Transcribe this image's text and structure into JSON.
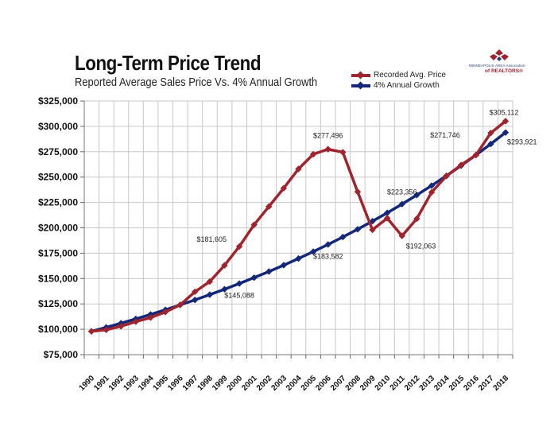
{
  "header": {
    "title": "Long-Term Price Trend",
    "subtitle": "Reported Average Sales Price Vs. 4% Annual Growth"
  },
  "logo": {
    "line1": "MINNEAPOLIS AREA Association",
    "line2": "of REALTORS®",
    "colors": {
      "red": "#a0242e",
      "blue": "#2a3d7a"
    }
  },
  "legend": {
    "items": [
      {
        "label": "Recorded Avg. Price",
        "color": "#a0242e"
      },
      {
        "label": "4% Annual Growth",
        "color": "#14287a"
      }
    ],
    "placement": "top-right"
  },
  "chart_data": {
    "type": "line",
    "title": "Long-Term Price Trend",
    "subtitle": "Reported Average Sales Price Vs. 4% Annual Growth",
    "xlabel": "",
    "ylabel": "",
    "ylim": [
      75000,
      325000
    ],
    "yticks": [
      75000,
      100000,
      125000,
      150000,
      175000,
      200000,
      225000,
      250000,
      275000,
      300000,
      325000
    ],
    "ytick_labels": [
      "$75,000",
      "$100,000",
      "$125,000",
      "$150,000",
      "$175,000",
      "$200,000",
      "$225,000",
      "$250,000",
      "$275,000",
      "$300,000",
      "$325,000"
    ],
    "grid": true,
    "legend_placement": "top-right",
    "x": [
      "1990",
      "1991",
      "1992",
      "1993",
      "1994",
      "1995",
      "1996",
      "1997",
      "1998",
      "1999",
      "2000",
      "2001",
      "2002",
      "2003",
      "2004",
      "2005",
      "2006",
      "2007",
      "2008",
      "2009",
      "2010",
      "2011",
      "2012",
      "2013",
      "2014",
      "2015",
      "2016",
      "2017",
      "2018"
    ],
    "series": [
      {
        "name": "Recorded Avg. Price",
        "color": "#a0242e",
        "values": [
          98000,
          99500,
          103000,
          107500,
          111500,
          117000,
          124000,
          137000,
          147000,
          163000,
          181605,
          203000,
          221000,
          239000,
          258000,
          272500,
          277496,
          274500,
          235500,
          198000,
          209500,
          192063,
          209000,
          235000,
          251000,
          262000,
          271746,
          293500,
          305112
        ]
      },
      {
        "name": "4% Annual Growth",
        "color": "#14287a",
        "values": [
          98000,
          101920,
          106000,
          110240,
          114650,
          119230,
          124000,
          128960,
          134120,
          139490,
          145088,
          150890,
          156930,
          163200,
          169730,
          176520,
          183582,
          190920,
          198560,
          206500,
          214760,
          223356,
          232290,
          241580,
          251250,
          261300,
          271746,
          282620,
          293921
        ]
      }
    ],
    "annotations": [
      {
        "text": "$181,605",
        "series": "Recorded Avg. Price",
        "x": "2000"
      },
      {
        "text": "$277,496",
        "series": "Recorded Avg. Price",
        "x": "2006"
      },
      {
        "text": "$192,063",
        "series": "Recorded Avg. Price",
        "x": "2011"
      },
      {
        "text": "$305,112",
        "series": "Recorded Avg. Price",
        "x": "2018"
      },
      {
        "text": "$145,088",
        "series": "4% Annual Growth",
        "x": "2000"
      },
      {
        "text": "$183,582",
        "series": "4% Annual Growth",
        "x": "2006"
      },
      {
        "text": "$223,356",
        "series": "4% Annual Growth",
        "x": "2011"
      },
      {
        "text": "$271,746",
        "series": "4% Annual Growth",
        "x": "2016"
      },
      {
        "text": "$293,921",
        "series": "4% Annual Growth",
        "x": "2018"
      }
    ]
  }
}
